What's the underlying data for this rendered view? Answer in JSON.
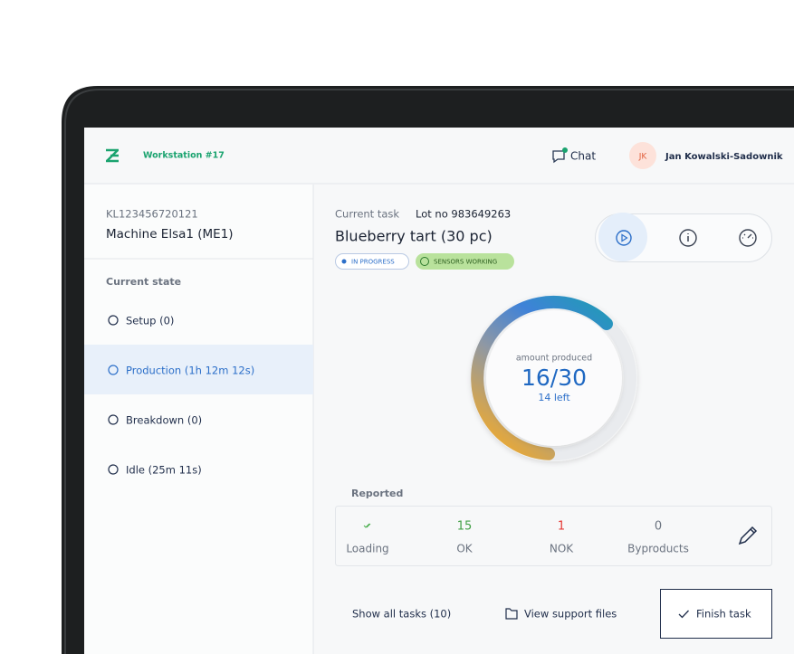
{
  "header": {
    "workstation": "Workstation #17",
    "chat": "Chat",
    "avatar": "JK",
    "user": "Jan Kowalski-Sadownik"
  },
  "sidebar": {
    "machine_id": "KL123456720121",
    "machine_name": "Machine Elsa1 (ME1)",
    "state_heading": "Current state",
    "states": [
      "Setup (0)",
      "Production (1h 12m 12s)",
      "Breakdown (0)",
      "Idle (25m 11s)"
    ],
    "active_state": 1
  },
  "task": {
    "heading": "Current task",
    "lot": "Lot no 983649263",
    "title": "Blueberry tart (30 pc)",
    "badges": [
      "IN PROGRESS",
      "SENSORS WORKING"
    ]
  },
  "progress": {
    "caption": "amount produced",
    "amount": "16/30",
    "remaining": "14 left"
  },
  "reported": {
    "heading": "Reported",
    "items": [
      {
        "label": "Loading"
      },
      {
        "value": 15,
        "label": "OK"
      },
      {
        "value": 1,
        "label": "NOK"
      },
      {
        "value": 0,
        "label": "Byproducts"
      }
    ]
  },
  "actions": [
    "Show all tasks (10)",
    "View support files",
    "Finish task"
  ]
}
